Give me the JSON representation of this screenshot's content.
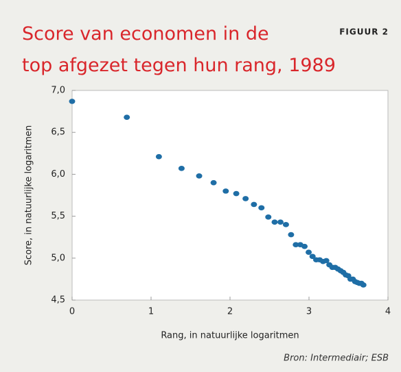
{
  "chart_data": {
    "type": "scatter",
    "title": "Score van economen in de top afgezet tegen hun rang, 1989",
    "label": "FIGUUR 2",
    "x_label": "Rang, in natuurlijke logaritmen",
    "y_label": "Score, in natuurlijke logaritmen",
    "source": "Bron: Intermediair; ESB",
    "color": "#1f6ea6",
    "xlim": [
      0,
      4
    ],
    "xticks": [
      0,
      1,
      2,
      3,
      4
    ],
    "ylim": [
      4.5,
      7
    ],
    "yticks": [
      {
        "value": 4.5,
        "label": "4,5"
      },
      {
        "value": 5,
        "label": "5,0"
      },
      {
        "value": 5.5,
        "label": "5,5"
      },
      {
        "value": 6,
        "label": "6,0"
      },
      {
        "value": 6.5,
        "label": "6,5"
      },
      {
        "value": 7,
        "label": "7,0"
      }
    ],
    "x": [
      0,
      0.693,
      1.099,
      1.386,
      1.609,
      1.792,
      1.946,
      2.079,
      2.197,
      2.303,
      2.398,
      2.485,
      2.565,
      2.639,
      2.708,
      2.773,
      2.833,
      2.89,
      2.944,
      2.996,
      3.045,
      3.091,
      3.135,
      3.178,
      3.219,
      3.258,
      3.296,
      3.332,
      3.367,
      3.401,
      3.434,
      3.466,
      3.497,
      3.526,
      3.555,
      3.584,
      3.611,
      3.638,
      3.664,
      3.689
    ],
    "values": [
      6.87,
      6.68,
      6.21,
      6.07,
      5.98,
      5.9,
      5.8,
      5.77,
      5.71,
      5.64,
      5.6,
      5.49,
      5.43,
      5.43,
      5.4,
      5.28,
      5.16,
      5.16,
      5.14,
      5.07,
      5.02,
      4.98,
      4.98,
      4.96,
      4.97,
      4.92,
      4.89,
      4.89,
      4.87,
      4.85,
      4.83,
      4.8,
      4.79,
      4.75,
      4.75,
      4.72,
      4.71,
      4.7,
      4.7,
      4.68
    ]
  }
}
